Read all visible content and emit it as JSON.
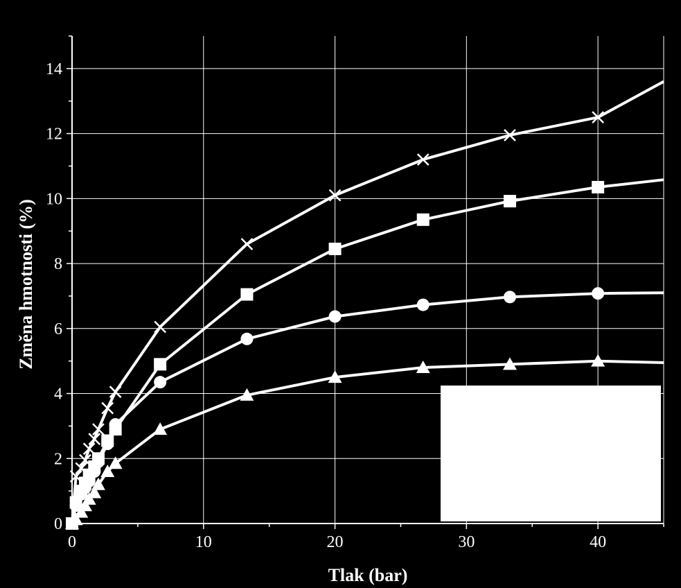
{
  "chart_data": {
    "type": "line",
    "title": "",
    "xlabel": "Tlak (bar)",
    "ylabel": "Změna hmotnosti (%)",
    "xlim": [
      0,
      45
    ],
    "ylim": [
      0,
      15
    ],
    "xticks": [
      0,
      10,
      20,
      30,
      40
    ],
    "yticks": [
      0,
      2,
      4,
      6,
      8,
      10,
      12,
      14
    ],
    "grid": true,
    "legend": "bottom-right (blank white box)",
    "colors": {
      "background": "#000000",
      "line": "#ffffff",
      "grid": "#ffffff",
      "legend_box": "#ffffff"
    },
    "series": [
      {
        "marker": "x",
        "x": [
          0,
          0.3,
          0.7,
          1.0,
          1.3,
          1.7,
          2.0,
          2.7,
          3.3,
          6.7,
          13.3,
          20.0,
          26.7,
          33.3,
          40.0,
          45.0
        ],
        "y": [
          0,
          1.45,
          1.7,
          1.95,
          2.3,
          2.6,
          2.9,
          3.55,
          4.05,
          6.05,
          8.6,
          10.1,
          11.2,
          11.95,
          12.5,
          13.6
        ]
      },
      {
        "marker": "square",
        "x": [
          0,
          0.3,
          0.7,
          1.0,
          1.3,
          1.7,
          2.0,
          2.7,
          3.3,
          6.7,
          13.3,
          20.0,
          26.7,
          33.3,
          40.0,
          45.0
        ],
        "y": [
          0,
          0.65,
          1.0,
          1.25,
          1.5,
          1.75,
          2.0,
          2.55,
          2.9,
          4.9,
          7.05,
          8.45,
          9.35,
          9.92,
          10.35,
          10.58
        ]
      },
      {
        "marker": "circle",
        "x": [
          0,
          0.3,
          0.7,
          1.0,
          1.3,
          1.7,
          2.0,
          2.7,
          3.3,
          6.7,
          13.3,
          20.0,
          26.7,
          33.3,
          40.0,
          45.0
        ],
        "y": [
          0,
          0.55,
          0.9,
          1.1,
          1.3,
          1.6,
          1.9,
          2.45,
          3.05,
          4.35,
          5.68,
          6.37,
          6.73,
          6.97,
          7.08,
          7.1
        ]
      },
      {
        "marker": "triangle",
        "x": [
          0,
          0.3,
          0.7,
          1.0,
          1.3,
          1.7,
          2.0,
          2.7,
          3.3,
          6.7,
          13.3,
          20.0,
          26.7,
          33.3,
          40.0,
          45.0
        ],
        "y": [
          0,
          0.12,
          0.35,
          0.55,
          0.75,
          0.95,
          1.2,
          1.6,
          1.85,
          2.9,
          3.95,
          4.5,
          4.8,
          4.9,
          5.0,
          4.95
        ]
      }
    ]
  }
}
